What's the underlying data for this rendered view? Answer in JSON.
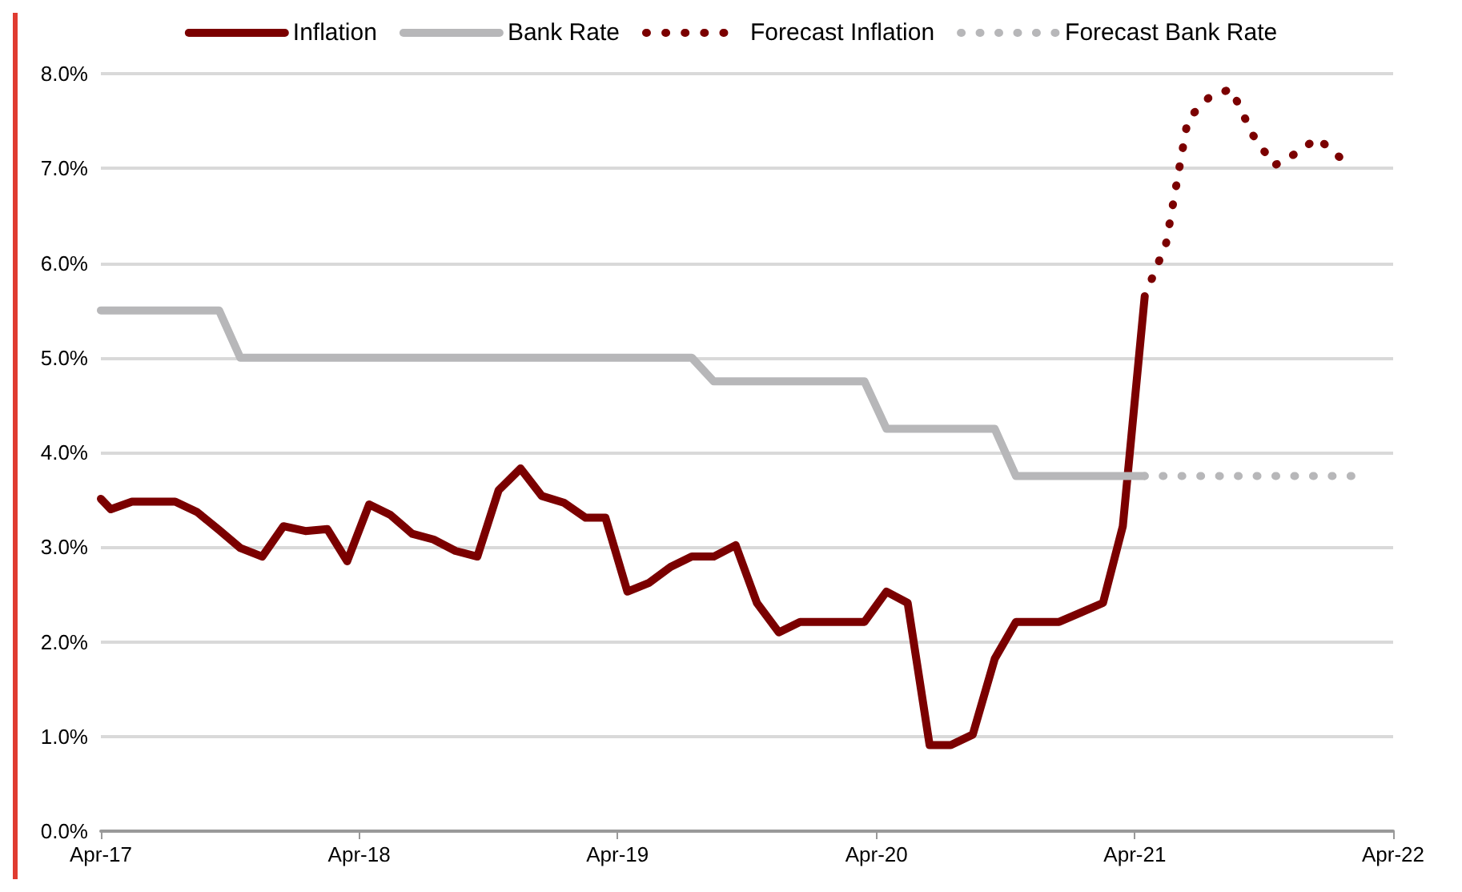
{
  "chart_data": {
    "type": "line",
    "series": [
      {
        "name": "Inflation",
        "color": "#7b0000",
        "line_style": "solid",
        "x": [
          "2017-04-01",
          "2017-04-15",
          "2017-05-15",
          "2017-06-15",
          "2017-07-15",
          "2017-08-15",
          "2017-09-15",
          "2017-10-15",
          "2017-11-15",
          "2017-12-15",
          "2018-01-15",
          "2018-02-15",
          "2018-03-15",
          "2018-04-15",
          "2018-05-15",
          "2018-06-15",
          "2018-07-15",
          "2018-08-15",
          "2018-09-15",
          "2018-10-15",
          "2018-11-15",
          "2018-12-15",
          "2019-01-15",
          "2019-02-15",
          "2019-03-15",
          "2019-04-15",
          "2019-05-15",
          "2019-06-15",
          "2019-07-15",
          "2019-08-15",
          "2019-09-15",
          "2019-10-15",
          "2019-11-15",
          "2019-12-15",
          "2020-01-15",
          "2020-02-15",
          "2020-03-15",
          "2020-04-15",
          "2020-05-15",
          "2020-06-15",
          "2020-07-15",
          "2020-08-15",
          "2020-09-15",
          "2020-10-15",
          "2020-11-15",
          "2020-12-15",
          "2021-01-15",
          "2021-02-15",
          "2021-03-15",
          "2021-04-15"
        ],
        "values": [
          3.51,
          3.4,
          3.48,
          3.48,
          3.48,
          3.37,
          3.18,
          2.99,
          2.9,
          3.22,
          3.17,
          3.19,
          2.85,
          3.45,
          3.34,
          3.14,
          3.08,
          2.96,
          2.9,
          3.6,
          3.83,
          3.54,
          3.47,
          3.31,
          3.31,
          2.53,
          2.62,
          2.79,
          2.9,
          2.9,
          3.02,
          2.41,
          2.1,
          2.21,
          2.21,
          2.21,
          2.21,
          2.53,
          2.41,
          0.91,
          0.91,
          1.02,
          1.82,
          2.21,
          2.21,
          2.21,
          2.31,
          2.41,
          3.22,
          5.65
        ]
      },
      {
        "name": "Bank Rate",
        "color": "#b7b7b9",
        "line_style": "solid",
        "x": [
          "2017-04-01",
          "2017-09-15",
          "2017-10-15",
          "2019-07-15",
          "2019-08-15",
          "2020-03-15",
          "2020-04-15",
          "2020-09-15",
          "2020-10-15",
          "2021-04-15"
        ],
        "values": [
          5.5,
          5.5,
          5.0,
          5.0,
          4.75,
          4.75,
          4.25,
          4.25,
          3.75,
          3.75
        ]
      },
      {
        "name": "Forecast Inflation",
        "color": "#7b0000",
        "line_style": "dotted",
        "x": [
          "2021-04-15",
          "2021-05-15",
          "2021-06-15",
          "2021-07-15",
          "2021-08-15",
          "2021-09-15",
          "2021-10-15",
          "2021-11-15",
          "2021-12-15",
          "2022-01-15"
        ],
        "values": [
          5.65,
          6.2,
          7.52,
          7.75,
          7.84,
          7.35,
          7.03,
          7.16,
          7.32,
          7.12
        ]
      },
      {
        "name": "Forecast Bank Rate",
        "color": "#b7b7b9",
        "line_style": "dotted",
        "x": [
          "2021-04-15",
          "2022-02-01"
        ],
        "values": [
          3.75,
          3.75
        ]
      }
    ],
    "xlim": [
      "2017-04-01",
      "2022-04-01"
    ],
    "xticks": [
      {
        "value": "2017-04-01",
        "label": "Apr-17"
      },
      {
        "value": "2018-04-01",
        "label": "Apr-18"
      },
      {
        "value": "2019-04-01",
        "label": "Apr-19"
      },
      {
        "value": "2020-04-01",
        "label": "Apr-20"
      },
      {
        "value": "2021-04-01",
        "label": "Apr-21"
      },
      {
        "value": "2022-04-01",
        "label": "Apr-22"
      }
    ],
    "ylim": [
      0,
      8
    ],
    "yticks": [
      {
        "value": 0,
        "label": "0.0%"
      },
      {
        "value": 1,
        "label": "1.0%"
      },
      {
        "value": 2,
        "label": "2.0%"
      },
      {
        "value": 3,
        "label": "3.0%"
      },
      {
        "value": 4,
        "label": "4.0%"
      },
      {
        "value": 5,
        "label": "5.0%"
      },
      {
        "value": 6,
        "label": "6.0%"
      },
      {
        "value": 7,
        "label": "7.0%"
      },
      {
        "value": 8,
        "label": "8.0%"
      }
    ],
    "grid": "y",
    "legend": "top",
    "marker": "none"
  }
}
